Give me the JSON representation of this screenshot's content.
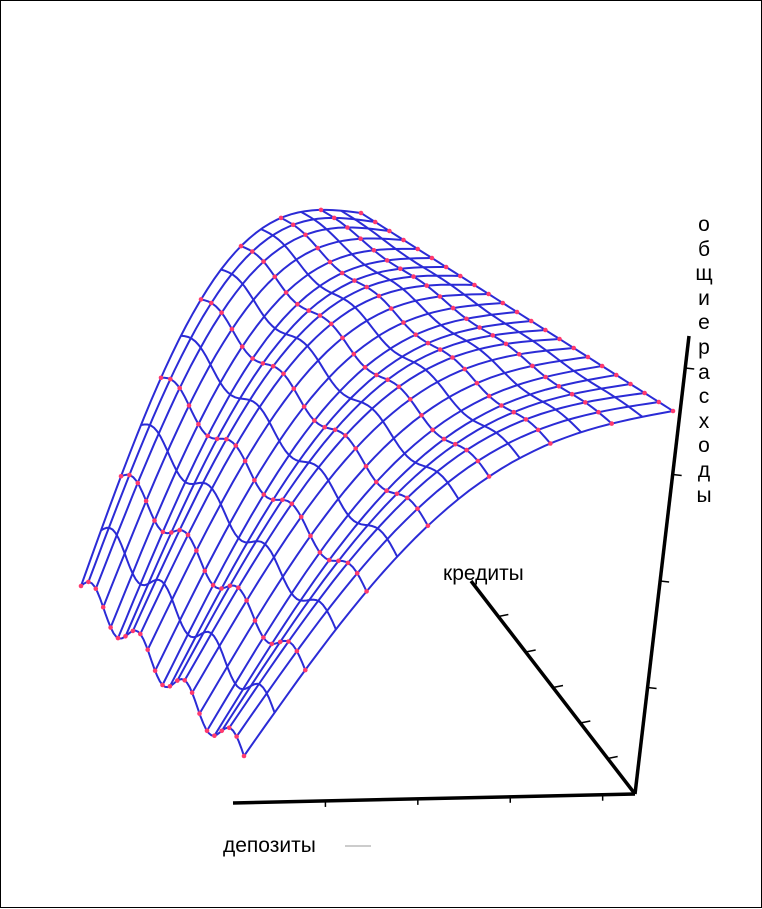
{
  "colors": {
    "mesh": "#2b2bd6",
    "points": "#ff3a6e",
    "axes": "#000000",
    "background": "#ffffff"
  },
  "chart_data": {
    "type": "surface",
    "title": "",
    "xlabel": "депозиты",
    "ylabel": "кредиты",
    "zlabel": "общие расходы",
    "zlabel_letters": [
      "о",
      "б",
      "щ",
      "и",
      "е",
      "р",
      "а",
      "с",
      "х",
      "о",
      "д",
      "ы"
    ],
    "grid": false,
    "x_ticks": 4,
    "y_ticks": 5,
    "z_ticks": 4,
    "x_range": [
      0,
      1
    ],
    "y_range": [
      0,
      1
    ],
    "z_range": [
      0,
      1
    ],
    "surface_shape": "ridge rising to a maximum at intermediate кредиты, with ripples along депозиты",
    "nx": 22,
    "ny": 14,
    "markers": "red points on every second grid line"
  }
}
